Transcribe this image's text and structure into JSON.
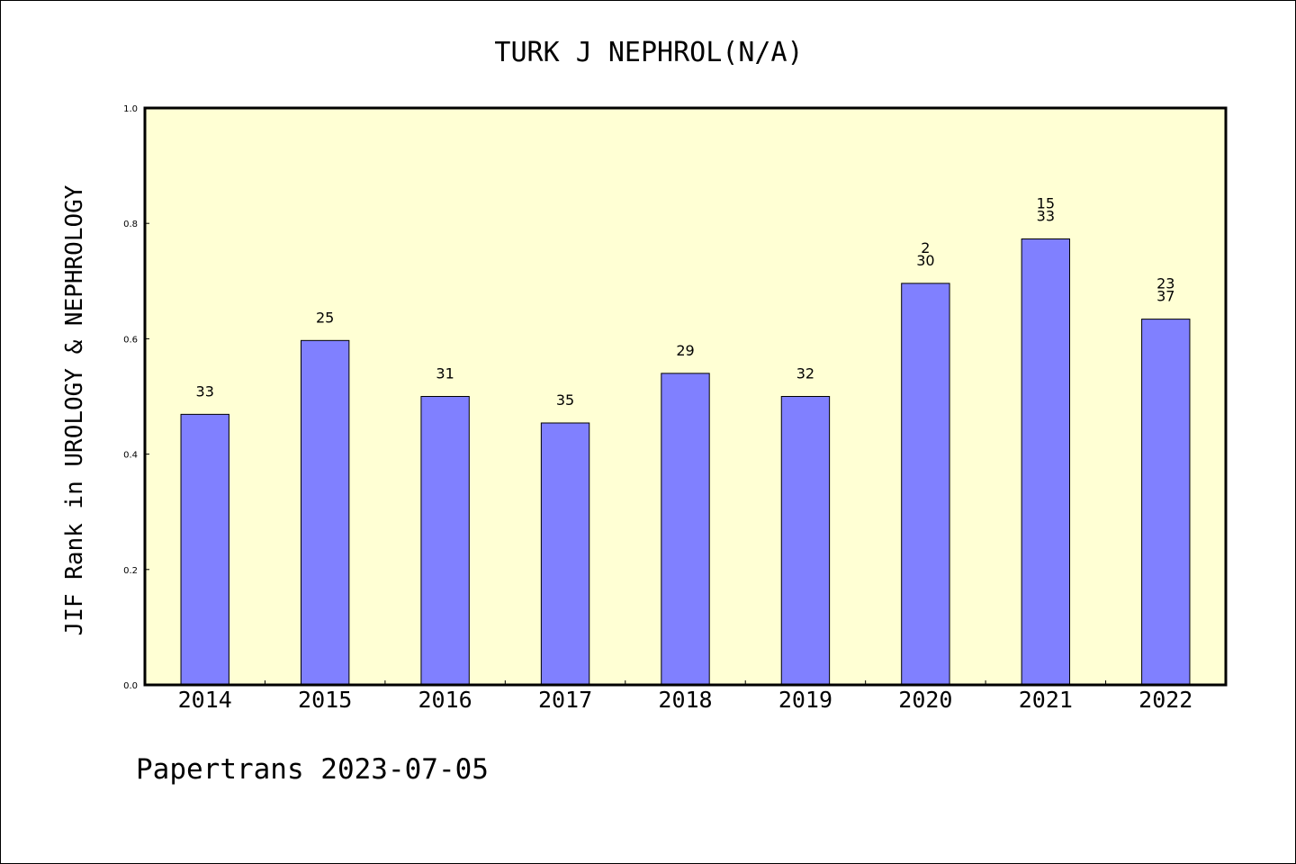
{
  "chart_data": {
    "type": "bar",
    "title": "TURK J NEPHROL(N/A)",
    "ylabel": "JIF Rank in UROLOGY & NEPHROLOGY",
    "xlabel": "",
    "ylim": [
      0,
      1.0
    ],
    "yticks": [
      "0.0",
      "0.2",
      "0.4",
      "0.6",
      "0.8",
      "1.0"
    ],
    "grid": false,
    "colors": {
      "bar": "#8080ff",
      "plot_background": "#ffffd4",
      "axis": "#000000"
    },
    "categories": [
      "2014",
      "2015",
      "2016",
      "2017",
      "2018",
      "2019",
      "2020",
      "2021",
      "2022"
    ],
    "values": [
      0.469,
      0.597,
      0.5,
      0.454,
      0.54,
      0.5,
      0.696,
      0.773,
      0.634
    ],
    "labels": [
      [
        "33"
      ],
      [
        "25"
      ],
      [
        "31"
      ],
      [
        "35"
      ],
      [
        "29"
      ],
      [
        "32"
      ],
      [
        "2",
        "30"
      ],
      [
        "15",
        "33"
      ],
      [
        "23",
        "37"
      ]
    ]
  },
  "footer": "Papertrans 2023-07-05"
}
